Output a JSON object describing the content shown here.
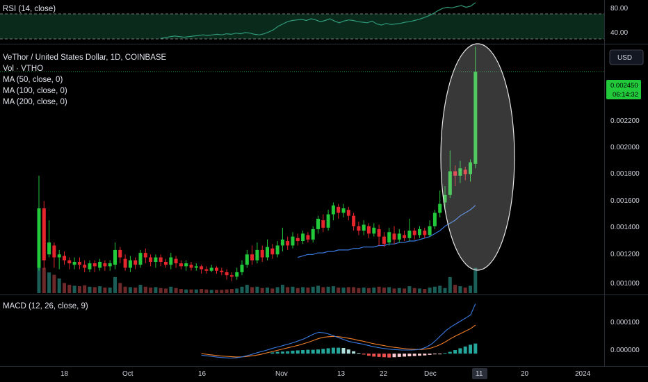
{
  "colors": {
    "background": "#000000",
    "up": "#22c93a",
    "down": "#e5262d",
    "vol_up": "#1b5e58",
    "vol_down": "#6e2a2a",
    "ma": "#3a7be0",
    "rsi": "#2f9a7a",
    "macd": "#3a7be0",
    "signal": "#f07f2a",
    "grid_dotted": "#1fa34b",
    "pane_separator": "#2a2e39",
    "axis_text": "#d1d4dc",
    "highlight_ellipse": "rgba(200,200,200,0.28)",
    "highlight_stroke": "#e6e6e6"
  },
  "rsi_pane": {
    "label": "RSI (14, close)",
    "axis_labels": [
      "80.00",
      "40.00"
    ],
    "upper_band": 70,
    "lower_band": 30
  },
  "main_pane": {
    "legend": [
      "VeThor / United States Dollar, 1D, COINBASE",
      "Vol · VTHO",
      "MA (50, close, 0)",
      "MA (100, close, 0)",
      "MA (200, close, 0)"
    ],
    "currency_button": "USD",
    "axis_labels": [
      "0.002200",
      "0.002000",
      "0.001800",
      "0.001600",
      "0.001400",
      "0.001200",
      "0.001000"
    ],
    "price_tag": "0.002450",
    "countdown_tag": "06:14:32"
  },
  "macd_pane": {
    "label": "MACD (12, 26, close, 9)",
    "axis_labels": [
      "0.000100",
      "0.000000"
    ]
  },
  "time_axis": {
    "labels": [
      "18",
      "Oct",
      "16",
      "Nov",
      "13",
      "22",
      "Dec",
      "11",
      "20",
      "2024"
    ],
    "highlighted": "11"
  },
  "chart_data": [
    {
      "type": "line",
      "name": "RSI (14, close)",
      "ylim": [
        20,
        90
      ],
      "bands": [
        30,
        70
      ],
      "x_start_index": 24,
      "values": [
        27,
        28,
        30,
        31,
        30,
        29,
        30,
        31,
        32,
        33,
        32,
        33,
        34,
        33,
        35,
        34,
        36,
        35,
        37,
        36,
        34,
        33,
        35,
        38,
        42,
        48,
        52,
        56,
        58,
        59,
        60,
        58,
        61,
        59,
        56,
        58,
        61,
        57,
        54,
        57,
        59,
        58,
        56,
        55,
        54,
        57,
        52,
        50,
        53,
        51,
        52,
        53,
        55,
        56,
        58,
        60,
        63,
        66,
        70,
        75,
        79,
        81,
        80,
        82,
        84,
        81,
        83,
        89
      ]
    },
    {
      "type": "candlestick",
      "name": "VeThor / United States Dollar, 1D, COINBASE",
      "ylim": [
        0.00095,
        0.00262
      ],
      "y_ticks": [
        0.0022,
        0.002,
        0.0018,
        0.0016,
        0.0014,
        0.0012,
        0.001
      ],
      "last_price": 0.00245,
      "ohlc": [
        [
          0.00113,
          0.00153,
          0.00111,
          0.00175
        ],
        [
          0.00153,
          0.00118,
          0.00112,
          0.00158
        ],
        [
          0.00122,
          0.0013,
          0.0012,
          0.00145
        ],
        [
          0.00128,
          0.0012,
          0.00113,
          0.0013
        ],
        [
          0.0012,
          0.00122,
          0.00112,
          0.00125
        ],
        [
          0.00121,
          0.00118,
          0.00115,
          0.00124
        ],
        [
          0.00118,
          0.00116,
          0.00112,
          0.0012
        ],
        [
          0.00115,
          0.00117,
          0.00112,
          0.0012
        ],
        [
          0.00117,
          0.00115,
          0.00112,
          0.0012
        ],
        [
          0.00115,
          0.00113,
          0.0011,
          0.00118
        ],
        [
          0.00112,
          0.00116,
          0.0011,
          0.00118
        ],
        [
          0.00116,
          0.00114,
          0.0011,
          0.00118
        ],
        [
          0.00113,
          0.00117,
          0.00111,
          0.00119
        ],
        [
          0.00116,
          0.00114,
          0.00111,
          0.00118
        ],
        [
          0.00114,
          0.00116,
          0.00111,
          0.00118
        ],
        [
          0.00115,
          0.00125,
          0.00112,
          0.0013
        ],
        [
          0.00125,
          0.0012,
          0.00116,
          0.00127
        ],
        [
          0.00119,
          0.00113,
          0.00111,
          0.00122
        ],
        [
          0.00113,
          0.00118,
          0.0011,
          0.00121
        ],
        [
          0.00118,
          0.00115,
          0.00112,
          0.0012
        ],
        [
          0.00115,
          0.00123,
          0.00113,
          0.00125
        ],
        [
          0.00123,
          0.0012,
          0.00116,
          0.00126
        ],
        [
          0.0012,
          0.00117,
          0.00114,
          0.00122
        ],
        [
          0.00117,
          0.0012,
          0.00113,
          0.00122
        ],
        [
          0.0012,
          0.00117,
          0.00114,
          0.00122
        ],
        [
          0.00117,
          0.00115,
          0.00113,
          0.00119
        ],
        [
          0.00115,
          0.0012,
          0.00112,
          0.00123
        ],
        [
          0.00119,
          0.00116,
          0.00113,
          0.00121
        ],
        [
          0.00116,
          0.00114,
          0.00112,
          0.00118
        ],
        [
          0.00114,
          0.00116,
          0.00111,
          0.00118
        ],
        [
          0.00115,
          0.00113,
          0.00111,
          0.00117
        ],
        [
          0.00113,
          0.00114,
          0.00111,
          0.00116
        ],
        [
          0.00114,
          0.00112,
          0.00109,
          0.00115
        ],
        [
          0.00112,
          0.00111,
          0.00109,
          0.00114
        ],
        [
          0.00111,
          0.00113,
          0.0011,
          0.00115
        ],
        [
          0.00113,
          0.00111,
          0.00109,
          0.00114
        ],
        [
          0.00111,
          0.0011,
          0.00108,
          0.00113
        ],
        [
          0.0011,
          0.00108,
          0.00105,
          0.00112
        ],
        [
          0.00108,
          0.00107,
          0.00104,
          0.0011
        ],
        [
          0.00107,
          0.0011,
          0.00105,
          0.00113
        ],
        [
          0.0011,
          0.00115,
          0.00108,
          0.00118
        ],
        [
          0.00115,
          0.00122,
          0.00113,
          0.00125
        ],
        [
          0.00122,
          0.00118,
          0.00115,
          0.00128
        ],
        [
          0.00118,
          0.00125,
          0.00116,
          0.0013
        ],
        [
          0.00125,
          0.0012,
          0.00117,
          0.00128
        ],
        [
          0.0012,
          0.00127,
          0.00118,
          0.00132
        ],
        [
          0.00126,
          0.00122,
          0.00119,
          0.00129
        ],
        [
          0.00122,
          0.00128,
          0.0012,
          0.00131
        ],
        [
          0.00128,
          0.00132,
          0.00124,
          0.0014
        ],
        [
          0.00131,
          0.00128,
          0.00125,
          0.00134
        ],
        [
          0.00128,
          0.00134,
          0.00126,
          0.00137
        ],
        [
          0.00133,
          0.00131,
          0.00128,
          0.00136
        ],
        [
          0.00131,
          0.00136,
          0.00129,
          0.00138
        ],
        [
          0.00135,
          0.00132,
          0.0013,
          0.00137
        ],
        [
          0.00132,
          0.00139,
          0.0013,
          0.00141
        ],
        [
          0.00139,
          0.00146,
          0.00136,
          0.00148
        ],
        [
          0.00145,
          0.0014,
          0.00137,
          0.00149
        ],
        [
          0.0014,
          0.00149,
          0.00138,
          0.00152
        ],
        [
          0.00149,
          0.00155,
          0.00145,
          0.00157
        ],
        [
          0.00154,
          0.0015,
          0.00146,
          0.00156
        ],
        [
          0.0015,
          0.00153,
          0.00147,
          0.00156
        ],
        [
          0.00152,
          0.00148,
          0.00145,
          0.00154
        ],
        [
          0.00148,
          0.00141,
          0.00138,
          0.0015
        ],
        [
          0.00141,
          0.00138,
          0.00135,
          0.00144
        ],
        [
          0.00138,
          0.00142,
          0.00135,
          0.00145
        ],
        [
          0.00141,
          0.00136,
          0.00133,
          0.00143
        ],
        [
          0.00136,
          0.0014,
          0.00134,
          0.00143
        ],
        [
          0.00139,
          0.00134,
          0.00128,
          0.00142
        ],
        [
          0.00134,
          0.00129,
          0.00127,
          0.00137
        ],
        [
          0.0013,
          0.00137,
          0.00128,
          0.0014
        ],
        [
          0.00136,
          0.00132,
          0.00129,
          0.00141
        ],
        [
          0.00132,
          0.00136,
          0.0013,
          0.00139
        ],
        [
          0.00135,
          0.00133,
          0.00131,
          0.00138
        ],
        [
          0.00133,
          0.00138,
          0.00131,
          0.00146
        ],
        [
          0.00138,
          0.00135,
          0.00132,
          0.0014
        ],
        [
          0.00135,
          0.00139,
          0.00133,
          0.00141
        ],
        [
          0.00138,
          0.00135,
          0.00133,
          0.0014
        ],
        [
          0.00135,
          0.00141,
          0.00134,
          0.00145
        ],
        [
          0.00141,
          0.0015,
          0.00139,
          0.00152
        ],
        [
          0.0015,
          0.00156,
          0.00147,
          0.00165
        ],
        [
          0.00157,
          0.00162,
          0.00152,
          0.00168
        ],
        [
          0.00162,
          0.00178,
          0.0016,
          0.00192
        ],
        [
          0.00178,
          0.00175,
          0.00168,
          0.00182
        ],
        [
          0.00175,
          0.0018,
          0.0017,
          0.00185
        ],
        [
          0.00179,
          0.00176,
          0.00172,
          0.00181
        ],
        [
          0.00176,
          0.00184,
          0.00171,
          0.00186
        ],
        [
          0.00183,
          0.00245,
          0.0018,
          0.00262
        ]
      ]
    },
    {
      "type": "line",
      "name": "MA",
      "x_start_index": 51,
      "values": [
        0.0012,
        0.00121,
        0.00122,
        0.00122,
        0.00123,
        0.00123,
        0.00124,
        0.00124,
        0.00125,
        0.00125,
        0.00125,
        0.00126,
        0.00126,
        0.00127,
        0.00127,
        0.00127,
        0.00128,
        0.00128,
        0.00129,
        0.00129,
        0.0013,
        0.0013,
        0.00131,
        0.00131,
        0.00132,
        0.00133,
        0.00134,
        0.00136,
        0.00138,
        0.00141,
        0.00143,
        0.00145,
        0.00148,
        0.0015,
        0.00152,
        0.00155
      ]
    },
    {
      "type": "bar",
      "name": "Vol · VTHO",
      "ylim": [
        0,
        1
      ],
      "values": [
        0.82,
        0.55,
        0.45,
        0.4,
        0.32,
        0.22,
        0.18,
        0.16,
        0.15,
        0.17,
        0.14,
        0.13,
        0.15,
        0.12,
        0.12,
        0.35,
        0.22,
        0.14,
        0.13,
        0.12,
        0.18,
        0.14,
        0.12,
        0.13,
        0.11,
        0.1,
        0.14,
        0.11,
        0.09,
        0.08,
        0.08,
        0.08,
        0.09,
        0.08,
        0.07,
        0.07,
        0.07,
        0.08,
        0.09,
        0.1,
        0.14,
        0.18,
        0.13,
        0.14,
        0.11,
        0.12,
        0.1,
        0.13,
        0.18,
        0.13,
        0.14,
        0.11,
        0.13,
        0.12,
        0.14,
        0.16,
        0.13,
        0.14,
        0.15,
        0.12,
        0.12,
        0.13,
        0.13,
        0.11,
        0.12,
        0.11,
        0.12,
        0.14,
        0.12,
        0.13,
        0.1,
        0.11,
        0.1,
        0.15,
        0.11,
        0.1,
        0.09,
        0.12,
        0.14,
        0.16,
        0.11,
        0.35,
        0.18,
        0.15,
        0.12,
        0.16,
        0.55
      ]
    },
    {
      "type": "line",
      "name": "MACD (12, 26, close, 9)",
      "ylim": [
        -3e-05,
        0.000185
      ],
      "x_start_index": 32,
      "macd": [
        -5e-06,
        -7e-06,
        -9e-06,
        -1.1e-05,
        -1.3e-05,
        -1.4e-05,
        -1.5e-05,
        -1.4e-05,
        -1.2e-05,
        -8e-06,
        -4e-06,
        1e-06,
        6e-06,
        1e-05,
        1.5e-05,
        2e-05,
        2.4e-05,
        2.9e-05,
        3.3e-05,
        3.8e-05,
        4.4e-05,
        5e-05,
        5.8e-05,
        6.6e-05,
        7.2e-05,
        7e-05,
        6.6e-05,
        6e-05,
        5.4e-05,
        4.8e-05,
        4.2e-05,
        3.8e-05,
        3.5e-05,
        3.2e-05,
        2.8e-05,
        2.4e-05,
        2.1e-05,
        1.8e-05,
        1.6e-05,
        1.4e-05,
        1.3e-05,
        1.2e-05,
        1.2e-05,
        1.2e-05,
        1.3e-05,
        1.6e-05,
        2.2e-05,
        3.2e-05,
        4.6e-05,
        6.2e-05,
        7.8e-05,
        9e-05,
        0.0001,
        0.00011,
        0.00012,
        0.00013,
        0.000168
      ],
      "signal": [
        0.0,
        -2e-06,
        -4e-06,
        -6e-06,
        -8e-06,
        -9e-06,
        -1e-05,
        -1.1e-05,
        -1.1e-05,
        -1e-05,
        -8e-06,
        -6e-06,
        -3e-06,
        1e-06,
        5e-06,
        9e-06,
        1.3e-05,
        1.7e-05,
        2.1e-05,
        2.5e-05,
        2.9e-05,
        3.4e-05,
        3.9e-05,
        4.5e-05,
        5.1e-05,
        5.5e-05,
        5.7e-05,
        5.8e-05,
        5.7e-05,
        5.5e-05,
        5.2e-05,
        4.9e-05,
        4.5e-05,
        4.2e-05,
        3.8e-05,
        3.4e-05,
        3.1e-05,
        2.8e-05,
        2.5e-05,
        2.2e-05,
        2e-05,
        1.8e-05,
        1.6e-05,
        1.5e-05,
        1.4e-05,
        1.4e-05,
        1.6e-05,
        1.9e-05,
        2.5e-05,
        3.2e-05,
        4.1e-05,
        5.1e-05,
        6e-05,
        6.8e-05,
        7.6e-05,
        8.4e-05,
        9.6e-05
      ],
      "histogram_x_start_index": 46,
      "histogram": [
        4e-06,
        6e-06,
        7e-06,
        8e-06,
        1e-05,
        1.1e-05,
        1.2e-05,
        1.3e-05,
        1.3e-05,
        1.4e-05,
        1.6e-05,
        1.8e-05,
        2e-05,
        2e-05,
        1.9e-05,
        1.4e-05,
        8e-06,
        2e-06,
        -3e-06,
        -7e-06,
        -1e-05,
        -1.1e-05,
        -1.2e-05,
        -1.3e-05,
        -1.2e-05,
        -1.1e-05,
        -1e-05,
        -9e-06,
        -8e-06,
        -7e-06,
        -6e-06,
        -4e-06,
        -2e-06,
        -1e-06,
        2e-06,
        6e-06,
        1.2e-05,
        1.8e-05,
        2.4e-05,
        3e-05,
        3.4e-05
      ]
    }
  ]
}
